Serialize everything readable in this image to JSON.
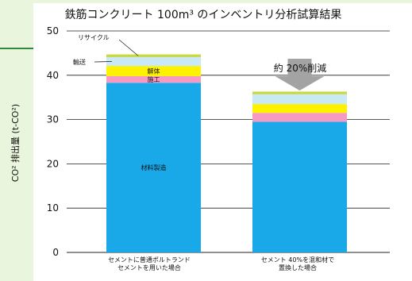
{
  "chart_data": {
    "type": "bar",
    "stacked": true,
    "title": "鉄筋コンクリート 100m³ のインベントリ分析試算結果",
    "ylabel": "CO² 排出量 (t-CO²)",
    "ylim": [
      0,
      50
    ],
    "yticks": [
      0,
      10,
      20,
      30,
      40,
      50
    ],
    "grid": true,
    "categories": [
      "セメントに普通ポルトランド\nセメントを用いた場合",
      "セメント 40%を混和材で\n置換した場合"
    ],
    "series": [
      {
        "name": "材料製造",
        "color": "#1aa9e8",
        "values": [
          38.3,
          29.5
        ]
      },
      {
        "name": "施工",
        "color": "#f69ac4",
        "values": [
          1.5,
          2.0
        ]
      },
      {
        "name": "解体",
        "color": "#fff200",
        "values": [
          2.3,
          2.0
        ]
      },
      {
        "name": "輸送",
        "color": "#c9e9f7",
        "values": [
          2.0,
          2.2
        ]
      },
      {
        "name": "リサイクル",
        "color": "#c8d840",
        "values": [
          0.6,
          0.6
        ]
      }
    ],
    "annotation": "約 20%削減"
  }
}
